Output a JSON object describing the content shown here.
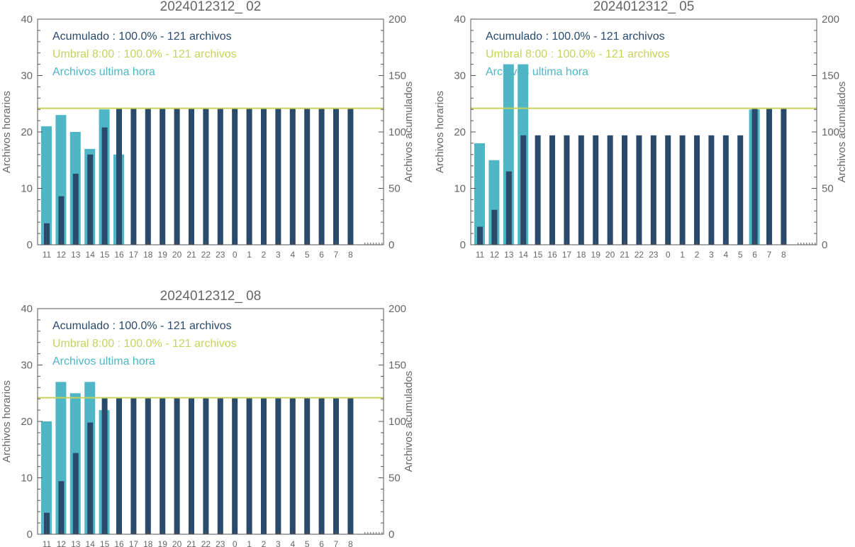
{
  "colors": {
    "hourly": "#4fb6c6",
    "cumulative": "#2a4a6b",
    "threshold": "#c8d25a",
    "axis": "#555555",
    "text": "#666666"
  },
  "chart_data": [
    {
      "type": "bar",
      "title": "2024012312_ 02",
      "ylabel": "Archivos horarios",
      "y2label": "Archivos acumulados",
      "ylim": [
        0,
        40
      ],
      "y2lim": [
        0,
        200
      ],
      "yticks": [
        "0",
        "10",
        "20",
        "30",
        "40"
      ],
      "y2ticks": [
        "0",
        "50",
        "100",
        "150",
        "200"
      ],
      "categories": [
        "11",
        "12",
        "13",
        "14",
        "15",
        "16",
        "17",
        "18",
        "19",
        "20",
        "21",
        "22",
        "23",
        "0",
        "1",
        "2",
        "3",
        "4",
        "5",
        "6",
        "7",
        "8"
      ],
      "legend": [
        {
          "text": "Acumulado : 100.0% - 121 archivos",
          "color": "cumulative"
        },
        {
          "text": "Umbral 8:00 : 100.0% - 121 archivos",
          "color": "threshold"
        },
        {
          "text": "Archivos ultima hora",
          "color": "hourly"
        }
      ],
      "threshold": 121,
      "series": [
        {
          "name": "Archivos ultima hora",
          "values": [
            21,
            23,
            20,
            17,
            24,
            16,
            null,
            null,
            null,
            null,
            null,
            null,
            null,
            null,
            null,
            null,
            null,
            null,
            null,
            null,
            null,
            null
          ]
        },
        {
          "name": "Acumulado",
          "values": [
            19,
            43,
            63,
            80,
            104,
            121,
            121,
            121,
            121,
            121,
            121,
            121,
            121,
            121,
            121,
            121,
            121,
            121,
            121,
            121,
            121,
            121
          ]
        }
      ]
    },
    {
      "type": "bar",
      "title": "2024012312_ 05",
      "ylabel": "Archivos horarios",
      "y2label": "Archivos acumulados",
      "ylim": [
        0,
        40
      ],
      "y2lim": [
        0,
        200
      ],
      "yticks": [
        "0",
        "10",
        "20",
        "30",
        "40"
      ],
      "y2ticks": [
        "0",
        "50",
        "100",
        "150",
        "200"
      ],
      "categories": [
        "11",
        "12",
        "13",
        "14",
        "15",
        "16",
        "17",
        "18",
        "19",
        "20",
        "21",
        "22",
        "23",
        "0",
        "1",
        "2",
        "3",
        "4",
        "5",
        "6",
        "7",
        "8"
      ],
      "legend": [
        {
          "text": "Acumulado : 100.0% - 121 archivos",
          "color": "cumulative"
        },
        {
          "text": "Umbral 8:00 : 100.0% - 121 archivos",
          "color": "threshold"
        },
        {
          "text": "Archivos ultima hora",
          "color": "hourly"
        }
      ],
      "threshold": 121,
      "series": [
        {
          "name": "Archivos ultima hora",
          "values": [
            18,
            15,
            32,
            32,
            null,
            null,
            null,
            null,
            null,
            null,
            null,
            null,
            null,
            null,
            null,
            null,
            null,
            null,
            null,
            24,
            null,
            null
          ]
        },
        {
          "name": "Acumulado",
          "values": [
            16,
            31,
            65,
            97,
            97,
            97,
            97,
            97,
            97,
            97,
            97,
            97,
            97,
            97,
            97,
            97,
            97,
            97,
            97,
            121,
            121,
            121
          ]
        }
      ]
    },
    {
      "type": "bar",
      "title": "2024012312_ 08",
      "ylabel": "Archivos horarios",
      "y2label": "Archivos acumulados",
      "ylim": [
        0,
        40
      ],
      "y2lim": [
        0,
        200
      ],
      "yticks": [
        "0",
        "10",
        "20",
        "30",
        "40"
      ],
      "y2ticks": [
        "0",
        "50",
        "100",
        "150",
        "200"
      ],
      "categories": [
        "11",
        "12",
        "13",
        "14",
        "15",
        "16",
        "17",
        "18",
        "19",
        "20",
        "21",
        "22",
        "23",
        "0",
        "1",
        "2",
        "3",
        "4",
        "5",
        "6",
        "7",
        "8"
      ],
      "legend": [
        {
          "text": "Acumulado : 100.0% - 121 archivos",
          "color": "cumulative"
        },
        {
          "text": "Umbral 8:00 : 100.0% - 121 archivos",
          "color": "threshold"
        },
        {
          "text": "Archivos ultima hora",
          "color": "hourly"
        }
      ],
      "threshold": 121,
      "series": [
        {
          "name": "Archivos ultima hora",
          "values": [
            20,
            27,
            25,
            27,
            22,
            null,
            null,
            null,
            null,
            null,
            null,
            null,
            null,
            null,
            null,
            null,
            null,
            null,
            null,
            null,
            null,
            null
          ]
        },
        {
          "name": "Acumulado",
          "values": [
            19,
            47,
            72,
            99,
            121,
            121,
            121,
            121,
            121,
            121,
            121,
            121,
            121,
            121,
            121,
            121,
            121,
            121,
            121,
            121,
            121,
            121
          ]
        }
      ]
    }
  ]
}
